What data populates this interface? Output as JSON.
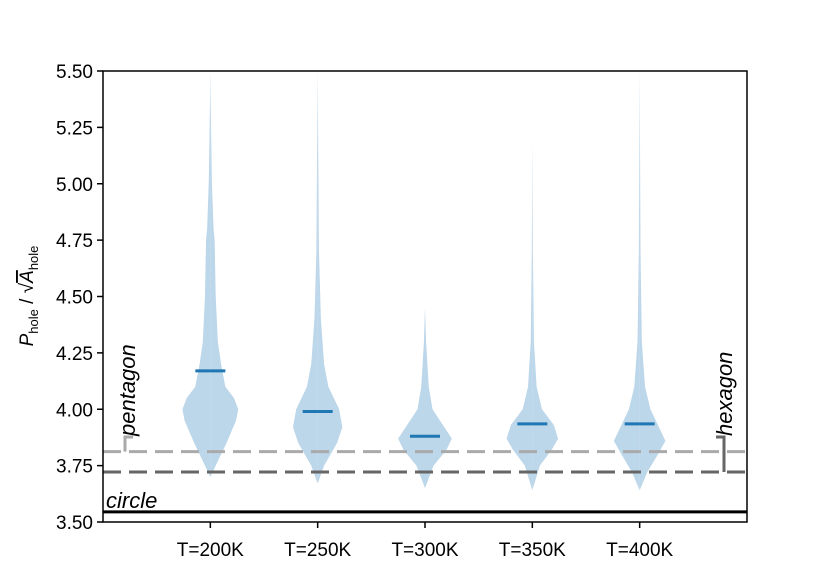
{
  "chart_data": {
    "type": "violin",
    "y_label": {
      "p": "P",
      "p_sub": "hole",
      "sep": " / ",
      "sqrt": "√",
      "a": "A",
      "a_sub": "hole"
    },
    "categories": [
      "T=200K",
      "T=250K",
      "T=300K",
      "T=350K",
      "T=400K"
    ],
    "medians": [
      4.17,
      3.99,
      3.88,
      3.935,
      3.935
    ],
    "median_color": "#1f77b4",
    "violin_color": "#bcd6ea",
    "violins": [
      {
        "y": [
          3.7,
          3.75,
          3.85,
          3.95,
          4.0,
          4.05,
          4.1,
          4.2,
          4.3,
          4.5,
          4.75,
          4.8,
          5.0,
          5.2,
          5.5
        ],
        "width": [
          0,
          0.05,
          0.15,
          0.24,
          0.26,
          0.22,
          0.14,
          0.1,
          0.07,
          0.05,
          0.04,
          0.03,
          0.015,
          0.008,
          0
        ]
      },
      {
        "y": [
          3.67,
          3.75,
          3.85,
          3.92,
          4.0,
          4.1,
          4.2,
          4.4,
          4.7,
          5.5
        ],
        "width": [
          0,
          0.06,
          0.18,
          0.23,
          0.2,
          0.1,
          0.06,
          0.03,
          0.012,
          0
        ]
      },
      {
        "y": [
          3.65,
          3.75,
          3.82,
          3.87,
          3.92,
          4.0,
          4.1,
          4.3,
          4.45
        ],
        "width": [
          0,
          0.08,
          0.2,
          0.25,
          0.18,
          0.07,
          0.035,
          0.01,
          0
        ]
      },
      {
        "y": [
          3.64,
          3.75,
          3.82,
          3.87,
          3.93,
          4.0,
          4.1,
          4.3,
          4.7,
          5.2
        ],
        "width": [
          0,
          0.07,
          0.18,
          0.24,
          0.2,
          0.09,
          0.04,
          0.015,
          0.005,
          0
        ]
      },
      {
        "y": [
          3.64,
          3.72,
          3.8,
          3.86,
          3.92,
          4.0,
          4.1,
          4.3,
          4.7,
          5.5
        ],
        "width": [
          0,
          0.07,
          0.17,
          0.24,
          0.18,
          0.1,
          0.05,
          0.02,
          0.008,
          0
        ]
      }
    ],
    "references": [
      {
        "name": "circle",
        "value": 3.545,
        "color": "#000000",
        "dashed": false
      },
      {
        "name": "pentagon",
        "value": 3.812,
        "color": "#aaaaaa",
        "dashed": true
      },
      {
        "name": "hexagon",
        "value": 3.722,
        "color": "#666666",
        "dashed": true
      }
    ],
    "ylim": [
      3.5,
      5.5
    ],
    "yticks": [
      {
        "value": 3.5,
        "label": "3.50"
      },
      3.75,
      {
        "value": 4.0,
        "label": "4.00"
      },
      4.25,
      {
        "value": 4.5,
        "label": "4.50"
      },
      4.75,
      {
        "value": 5.0,
        "label": "5.00"
      },
      5.25,
      {
        "value": 5.5,
        "label": "5.50"
      }
    ]
  }
}
